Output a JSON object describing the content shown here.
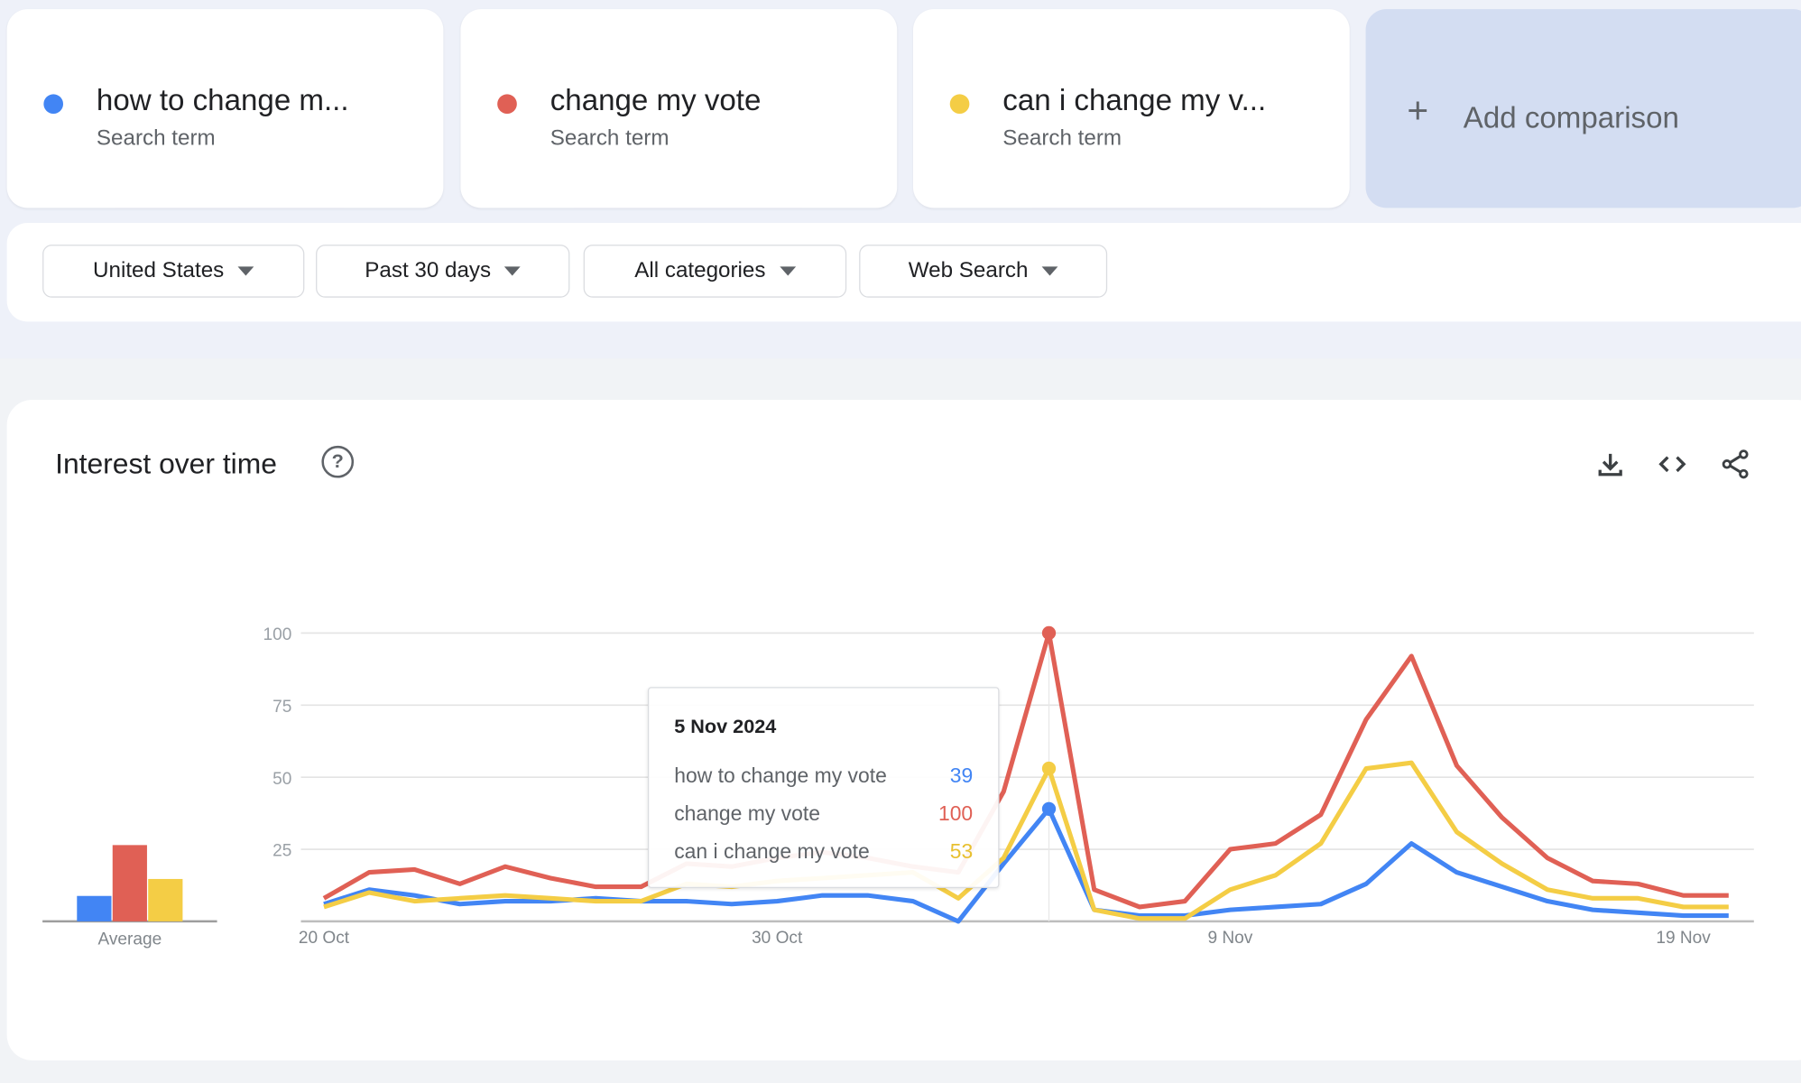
{
  "terms": [
    {
      "label": "how to change m...",
      "sub": "Search term",
      "color": "#4285f4"
    },
    {
      "label": "change my vote",
      "sub": "Search term",
      "color": "#e06055"
    },
    {
      "label": "can i change my v...",
      "sub": "Search term",
      "color": "#f4cd45"
    }
  ],
  "add_comparison": {
    "icon": "plus-icon",
    "label": "Add comparison"
  },
  "filters": [
    "United States",
    "Past 30 days",
    "All categories",
    "Web Search"
  ],
  "panel": {
    "title": "Interest over time",
    "icons": [
      "help-icon",
      "download-icon",
      "embed-code-icon",
      "share-icon"
    ]
  },
  "average_label": "Average",
  "tooltip": {
    "date": "5 Nov 2024",
    "rows": [
      {
        "label": "how to change my vote",
        "value": "39"
      },
      {
        "label": "change my vote",
        "value": "100"
      },
      {
        "label": "can i change my vote",
        "value": "53"
      }
    ]
  },
  "chart_data": {
    "type": "line",
    "title": "Interest over time",
    "x_start": "20 Oct",
    "x_tick_labels": [
      "20 Oct",
      "30 Oct",
      "9 Nov",
      "19 Nov"
    ],
    "x_tick_index": [
      0,
      10,
      20,
      30
    ],
    "y_ticks": [
      25,
      50,
      75,
      100
    ],
    "ylim": [
      0,
      100
    ],
    "grid": true,
    "highlight_index": 16,
    "series": [
      {
        "name": "how to change my vote",
        "color": "#4285f4",
        "average": 9,
        "values": [
          6,
          11,
          9,
          6,
          7,
          7,
          8,
          7,
          7,
          6,
          7,
          9,
          9,
          7,
          0,
          20,
          39,
          4,
          2,
          2,
          4,
          5,
          6,
          13,
          27,
          17,
          12,
          7,
          4,
          3,
          2,
          2
        ]
      },
      {
        "name": "change my vote",
        "color": "#e06055",
        "average": 27,
        "values": [
          8,
          17,
          18,
          13,
          19,
          15,
          12,
          12,
          20,
          19,
          22,
          24,
          22,
          19,
          17,
          45,
          100,
          11,
          5,
          7,
          25,
          27,
          37,
          70,
          92,
          54,
          36,
          22,
          14,
          13,
          9,
          9
        ]
      },
      {
        "name": "can i change my vote",
        "color": "#f4cd45",
        "average": 15,
        "values": [
          5,
          10,
          7,
          8,
          9,
          8,
          7,
          7,
          13,
          12,
          14,
          15,
          16,
          17,
          8,
          22,
          53,
          4,
          1,
          1,
          11,
          16,
          27,
          53,
          55,
          31,
          20,
          11,
          8,
          8,
          5,
          5
        ]
      }
    ]
  }
}
